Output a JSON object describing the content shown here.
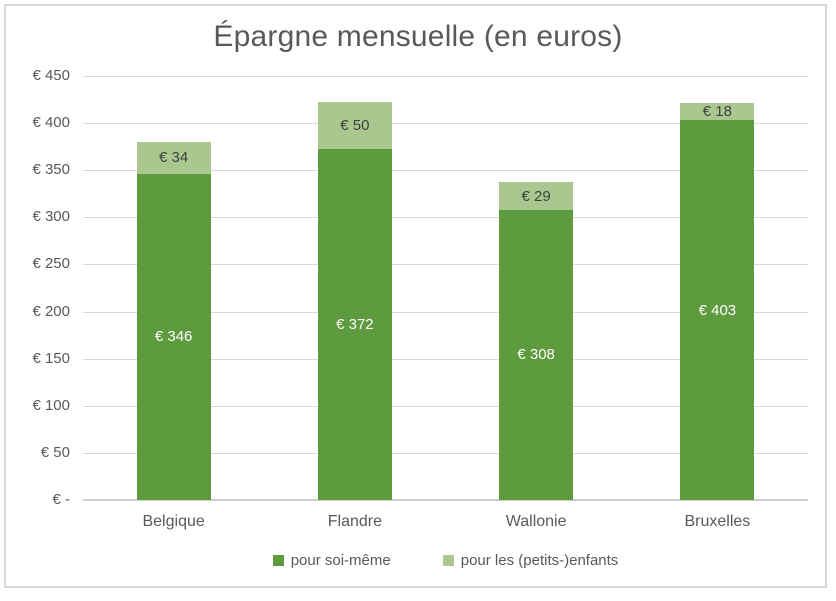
{
  "colors": {
    "dark_green": "#5e9a3e",
    "light_green": "#a9c78e",
    "gridline": "#d9d9d9",
    "axis_line": "#d0d0d0",
    "frame_border": "#d9d9d9",
    "title_text": "#595959",
    "axis_text": "#595959",
    "legend_text": "#595959",
    "label_on_dark": "#ffffff",
    "label_on_light": "#404040",
    "background": "#ffffff"
  },
  "chart_data": {
    "type": "bar",
    "stacked": true,
    "title": "Épargne mensuelle (en euros)",
    "categories": [
      "Belgique",
      "Flandre",
      "Wallonie",
      "Bruxelles"
    ],
    "series": [
      {
        "name": "pour soi-même",
        "color_key": "dark_green",
        "label_color_key": "label_on_dark",
        "values": [
          346,
          372,
          308,
          403
        ],
        "data_labels": [
          "€ 346",
          "€ 372",
          "€ 308",
          "€ 403"
        ]
      },
      {
        "name": "pour les (petits-)enfants",
        "color_key": "light_green",
        "label_color_key": "label_on_light",
        "values": [
          34,
          50,
          29,
          18
        ],
        "data_labels": [
          "€ 34",
          "€ 50",
          "€ 29",
          "€ 18"
        ]
      }
    ],
    "y_axis": {
      "min": 0,
      "max": 450,
      "step": 50,
      "tick_labels": [
        "€ -",
        "€ 50",
        "€ 100",
        "€ 150",
        "€ 200",
        "€ 250",
        "€ 300",
        "€ 350",
        "€ 400",
        "€ 450"
      ]
    },
    "grid": true,
    "legend_position": "bottom"
  }
}
